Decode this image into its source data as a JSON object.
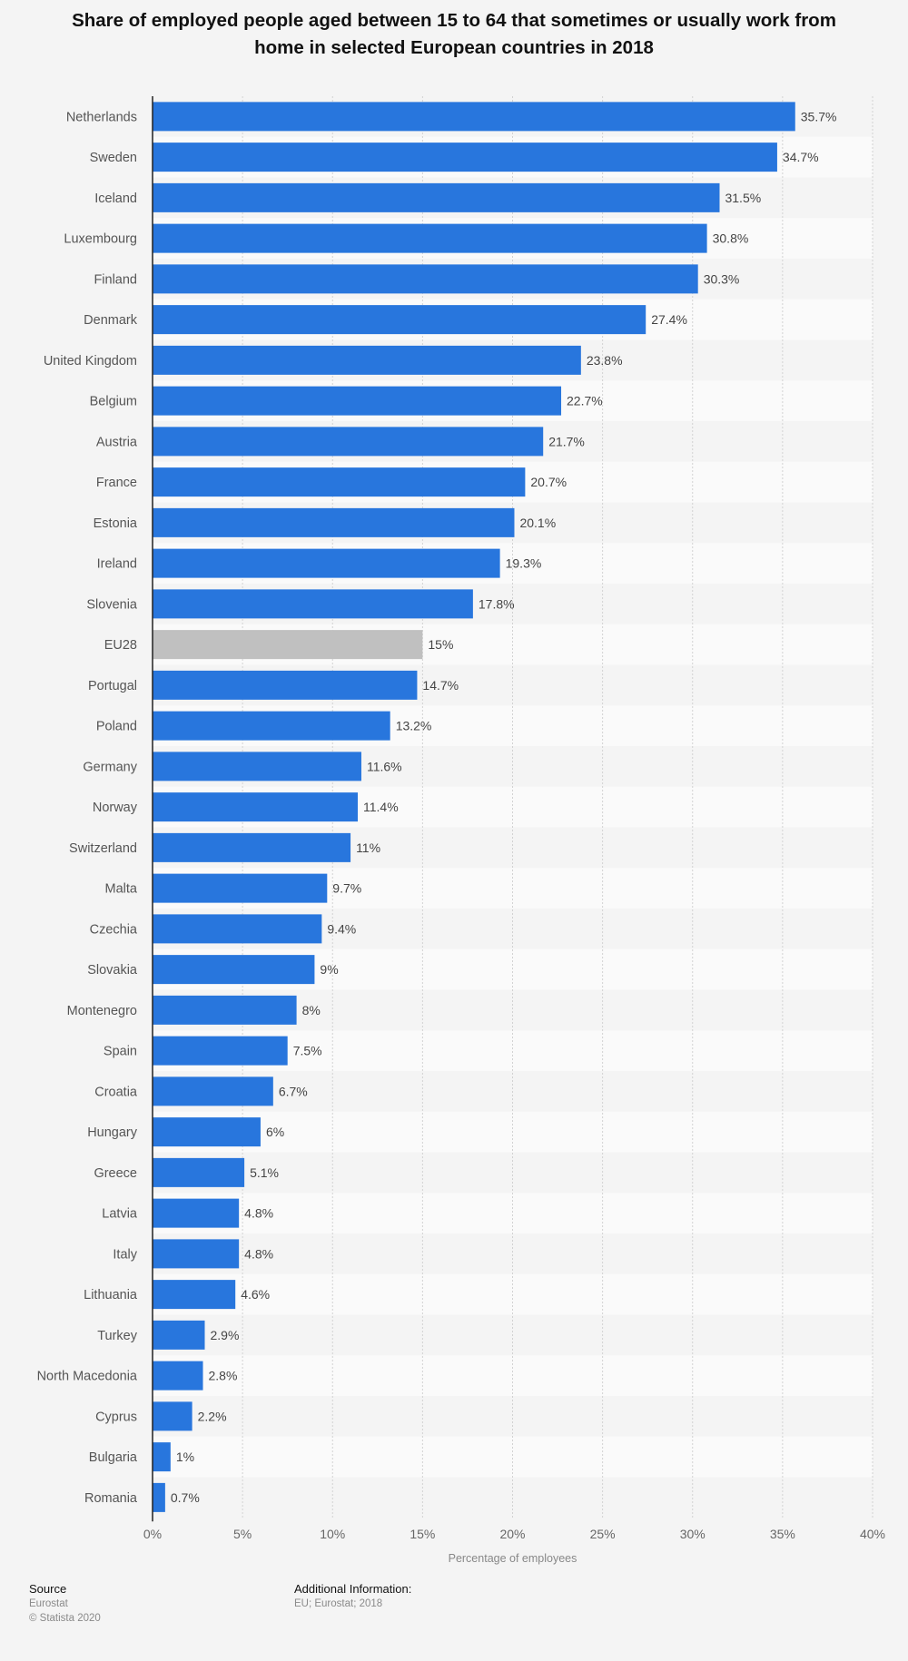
{
  "chart_data": {
    "type": "bar",
    "orientation": "horizontal",
    "title": "Share of employed people aged between 15 to 64 that sometimes or usually work from home in selected European countries in 2018",
    "xlabel": "Percentage of employees",
    "ylabel": "",
    "xlim": [
      0,
      40
    ],
    "ticks": [
      "0%",
      "5%",
      "10%",
      "15%",
      "20%",
      "25%",
      "30%",
      "35%",
      "40%"
    ],
    "tick_values": [
      0,
      5,
      10,
      15,
      20,
      25,
      30,
      35,
      40
    ],
    "grid": true,
    "categories": [
      "Netherlands",
      "Sweden",
      "Iceland",
      "Luxembourg",
      "Finland",
      "Denmark",
      "United Kingdom",
      "Belgium",
      "Austria",
      "France",
      "Estonia",
      "Ireland",
      "Slovenia",
      "EU28",
      "Portugal",
      "Poland",
      "Germany",
      "Norway",
      "Switzerland",
      "Malta",
      "Czechia",
      "Slovakia",
      "Montenegro",
      "Spain",
      "Croatia",
      "Hungary",
      "Greece",
      "Latvia",
      "Italy",
      "Lithuania",
      "Turkey",
      "North Macedonia",
      "Cyprus",
      "Bulgaria",
      "Romania"
    ],
    "values": [
      35.7,
      34.7,
      31.5,
      30.8,
      30.3,
      27.4,
      23.8,
      22.7,
      21.7,
      20.7,
      20.1,
      19.3,
      17.8,
      15,
      14.7,
      13.2,
      11.6,
      11.4,
      11,
      9.7,
      9.4,
      9,
      8,
      7.5,
      6.7,
      6,
      5.1,
      4.8,
      4.8,
      4.6,
      2.9,
      2.8,
      2.2,
      1,
      0.7
    ],
    "value_labels": [
      "35.7%",
      "34.7%",
      "31.5%",
      "30.8%",
      "30.3%",
      "27.4%",
      "23.8%",
      "22.7%",
      "21.7%",
      "20.7%",
      "20.1%",
      "19.3%",
      "17.8%",
      "15%",
      "14.7%",
      "13.2%",
      "11.6%",
      "11.4%",
      "11%",
      "9.7%",
      "9.4%",
      "9%",
      "8%",
      "7.5%",
      "6.7%",
      "6%",
      "5.1%",
      "4.8%",
      "4.8%",
      "4.6%",
      "2.9%",
      "2.8%",
      "2.2%",
      "1%",
      "0.7%"
    ],
    "highlight_category": "EU28",
    "colors": {
      "bar": "#2876dd",
      "highlight": "#c0c0c0",
      "band_light": "#fafafa",
      "band_dark": "#f4f4f4"
    }
  },
  "footer": {
    "source_heading": "Source",
    "source_lines": [
      "Eurostat",
      "© Statista 2020"
    ],
    "info_heading": "Additional Information:",
    "info_lines": [
      "EU; Eurostat; 2018"
    ]
  }
}
